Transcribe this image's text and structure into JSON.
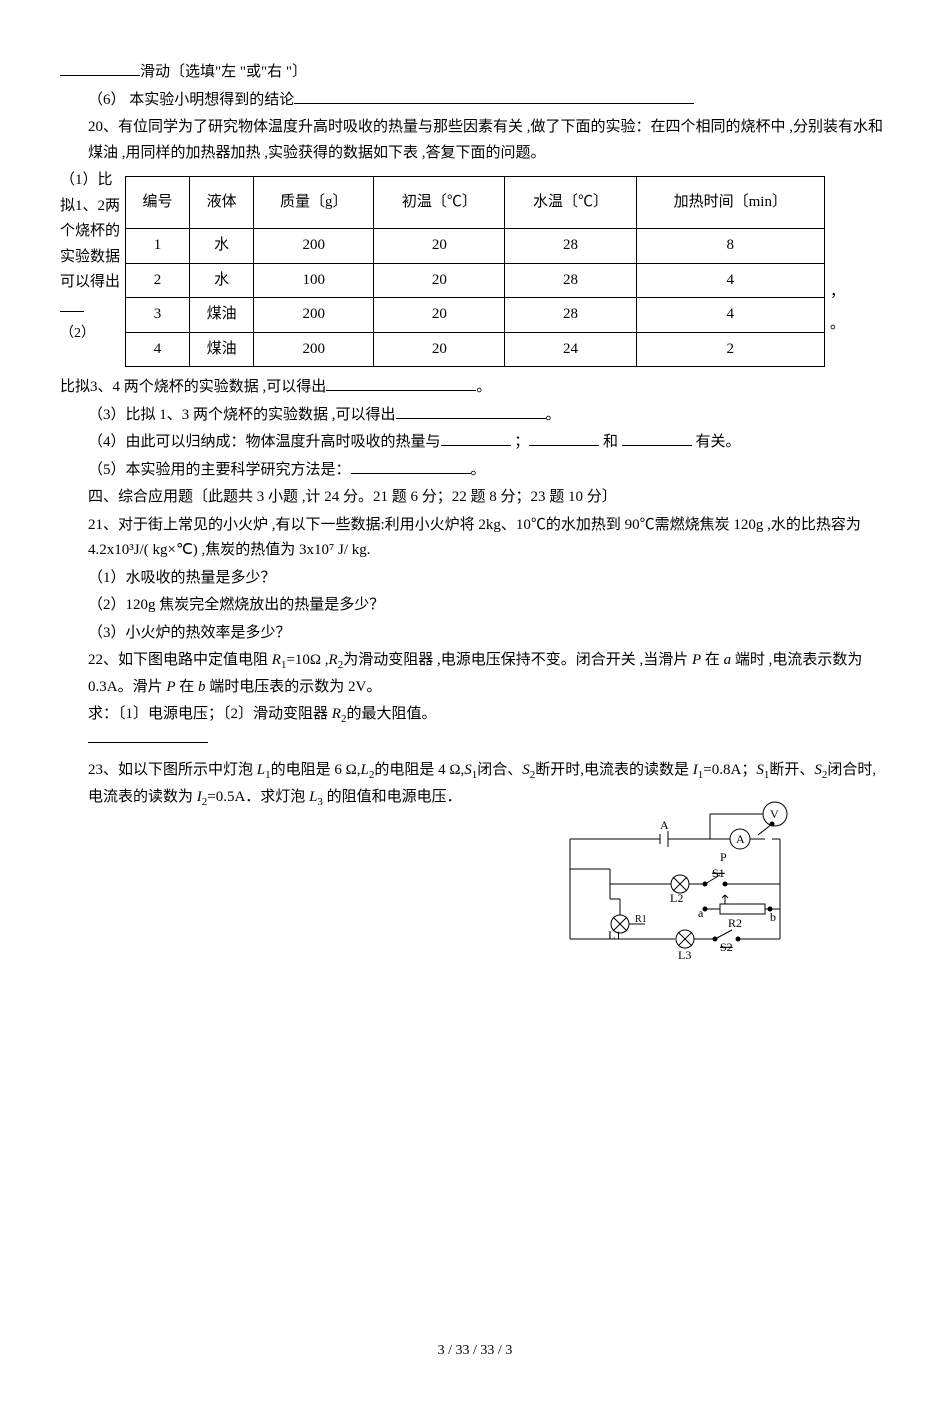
{
  "top": {
    "slide_text": "滑动〔选填\"左 \"或\"右 \"〕",
    "item6_label": "（6）",
    "item6_text": "本实验小明想得到的结论"
  },
  "q20": {
    "intro": "20、有位同学为了研究物体温度升高时吸收的热量与那些因素有关 ,做了下面的实验：在四个相同的烧杯中 ,分别装有水和煤油 ,用同样的加热器加热 ,实验获得的数据如下表 ,答复下面的问题。",
    "side_text": "（1）比拟1、2两个烧杯的实验数据可以得出",
    "item2": "比拟3、4 两个烧杯的实验数据 ,可以得出",
    "item3_label": "（3）比拟 1、3 两个烧杯的实验数据 ,可以得出",
    "item4_label": "（4）由此可以归纳成：物体温度升高时吸收的热量与",
    "item4_mid": "；",
    "item4_and": "和",
    "item4_end": "有关。",
    "item5_label": "（5）本实验用的主要科学研究方法是：",
    "trail_comma": "，",
    "trail_period": "。"
  },
  "table": {
    "headers": [
      "编号",
      "液体",
      "质量〔g〕",
      "初温〔℃〕",
      "水温〔℃〕",
      "加热时间〔min〕"
    ],
    "rows": [
      [
        "1",
        "水",
        "200",
        "20",
        "28",
        "8"
      ],
      [
        "2",
        "水",
        "100",
        "20",
        "28",
        "4"
      ],
      [
        "3",
        "煤油",
        "200",
        "20",
        "28",
        "4"
      ],
      [
        "4",
        "煤油",
        "200",
        "20",
        "24",
        "2"
      ]
    ]
  },
  "section4": {
    "title": "四、综合应用题〔此题共 3 小题 ,计 24 分。21 题 6 分；22 题 8 分；23 题 10 分〕"
  },
  "q21": {
    "intro": "21、对于街上常见的小火炉 ,有以下一些数据:利用小火炉将 2kg、10℃的水加热到 90℃需燃烧焦炭 120g ,水的比热容为 4.2x10³J/(  kg×℃) ,焦炭的热值为 3x10⁷ J/ kg.",
    "sub1": "（1）水吸收的热量是多少？",
    "sub2": "（2）120g 焦炭完全燃烧放出的热量是多少？",
    "sub3": "（3）小火炉的热效率是多少？"
  },
  "q22": {
    "intro_a": "22、如下图电路中定值电阻 ",
    "r1": "R",
    "r1sub": "1",
    "eq1": "=10Ω ,",
    "r2": "R",
    "r2sub": "2",
    "intro_b": "为滑动变阻器 ,电源电压保持不变。闭合开关 ,当滑片 ",
    "p": "P",
    "intro_c": " 在 ",
    "a": "a",
    "intro_d": " 端时 ,电流表示数为 0.3A。滑片 ",
    "intro_e": " 在 ",
    "b": "b",
    "intro_f": " 端时电压表的示数为 2V。",
    "ask": "求：〔1〕电源电压；〔2〕滑动变阻器 ",
    "ask_end": "的最大阻值。"
  },
  "q23": {
    "intro_a": "23、如以下图所示中灯泡 ",
    "l": "L",
    "l1": "1",
    "intro_b": "的电阻是 6 Ω,",
    "l2": "2",
    "intro_c": "的电阻是 4 Ω,",
    "s": "S",
    "s1": "1",
    "intro_d": "闭合、",
    "s2": "2",
    "intro_e": "断开时,电流表的读数是 ",
    "i": "I",
    "i1": "1",
    "intro_f": "=0.8A；",
    "intro_g": "断开、",
    "intro_h": "闭合时,电流表的读数为 ",
    "i2": "2",
    "intro_i": "=0.5A．求灯泡 ",
    "l3": "3",
    "intro_j": " 的阻值和电源电压．"
  },
  "circuit": {
    "labels": {
      "V": "V",
      "A": "A",
      "A2": "A",
      "P": "P",
      "a": "a",
      "b": "b",
      "L1": "L1",
      "L2": "L2",
      "L3": "L3",
      "R1": "R1",
      "R2": "R2",
      "S1": "S1",
      "S2": "S2"
    }
  },
  "footer": "3 / 33 / 33 / 3"
}
